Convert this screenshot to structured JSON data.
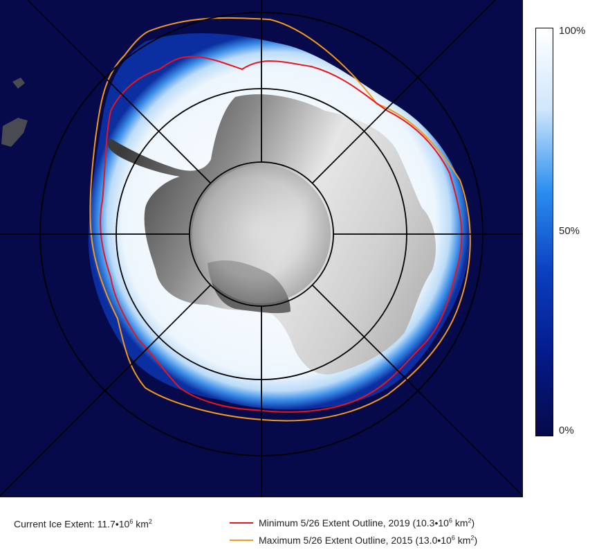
{
  "colors": {
    "ocean": "#060a4a",
    "min_outline": "#e8141e",
    "max_outline": "#f29a1e",
    "land_dark": "#3a3a3a",
    "land_light": "#e8e8e8"
  },
  "colorbar": {
    "top_label": "100%",
    "mid_label": "50%",
    "bottom_label": "0%",
    "stops": [
      "#ffffff",
      "#cfe6fb",
      "#2b8ef0",
      "#0a3fc0",
      "#041a8a",
      "#060a4a"
    ]
  },
  "current_extent": {
    "label": "Current Ice Extent: ",
    "value": "11.7",
    "unit": "km",
    "power": "6",
    "unit_power": "2"
  },
  "legend": {
    "minimum": {
      "label": "Minimum 5/26 Extent Outline,  2019  (10.3",
      "power": "6",
      "unit": " km",
      "unit_power": "2",
      "close": ")"
    },
    "maximum": {
      "label": "Maximum 5/26 Extent Outline, 2015  (13.0",
      "power": "6",
      "unit": " km",
      "unit_power": "2",
      "close": ")"
    }
  },
  "map": {
    "grid_rings": 3,
    "meridians": 8
  }
}
